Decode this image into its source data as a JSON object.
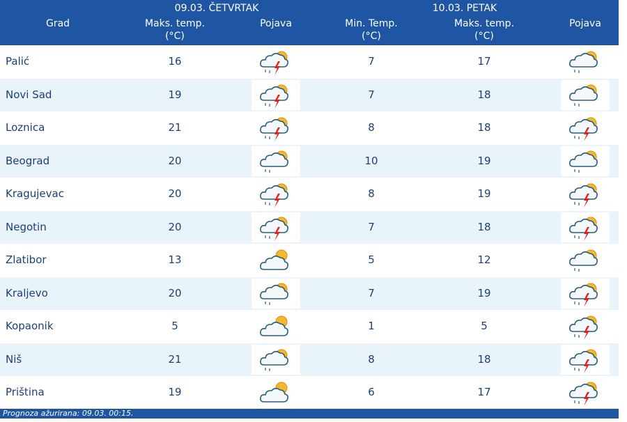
{
  "header": {
    "days": [
      "09.03. ČETVRTAK",
      "10.03. PETAK"
    ],
    "columns": [
      "Grad",
      "Maks. temp.",
      "Pojava",
      "Min. Temp.",
      "Maks. temp.",
      "Pojava"
    ],
    "unit": "(°C)"
  },
  "table": {
    "rows": [
      [
        "Palić",
        16,
        7,
        17
      ],
      [
        "Novi Sad",
        19,
        7,
        18
      ],
      [
        "Loznica",
        21,
        8,
        18
      ],
      [
        "Beograd",
        20,
        10,
        19
      ],
      [
        "Kragujevac",
        20,
        8,
        19
      ],
      [
        "Negotin",
        20,
        7,
        18
      ],
      [
        "Zlatibor",
        13,
        5,
        12
      ],
      [
        "Kraljevo",
        20,
        7,
        19
      ],
      [
        "Kopaonik",
        5,
        1,
        5
      ],
      [
        "Niš",
        21,
        8,
        18
      ],
      [
        "Priština",
        19,
        6,
        17
      ]
    ]
  },
  "footer": "Prognoza ažurirana:  09.03. 00:15."
}
